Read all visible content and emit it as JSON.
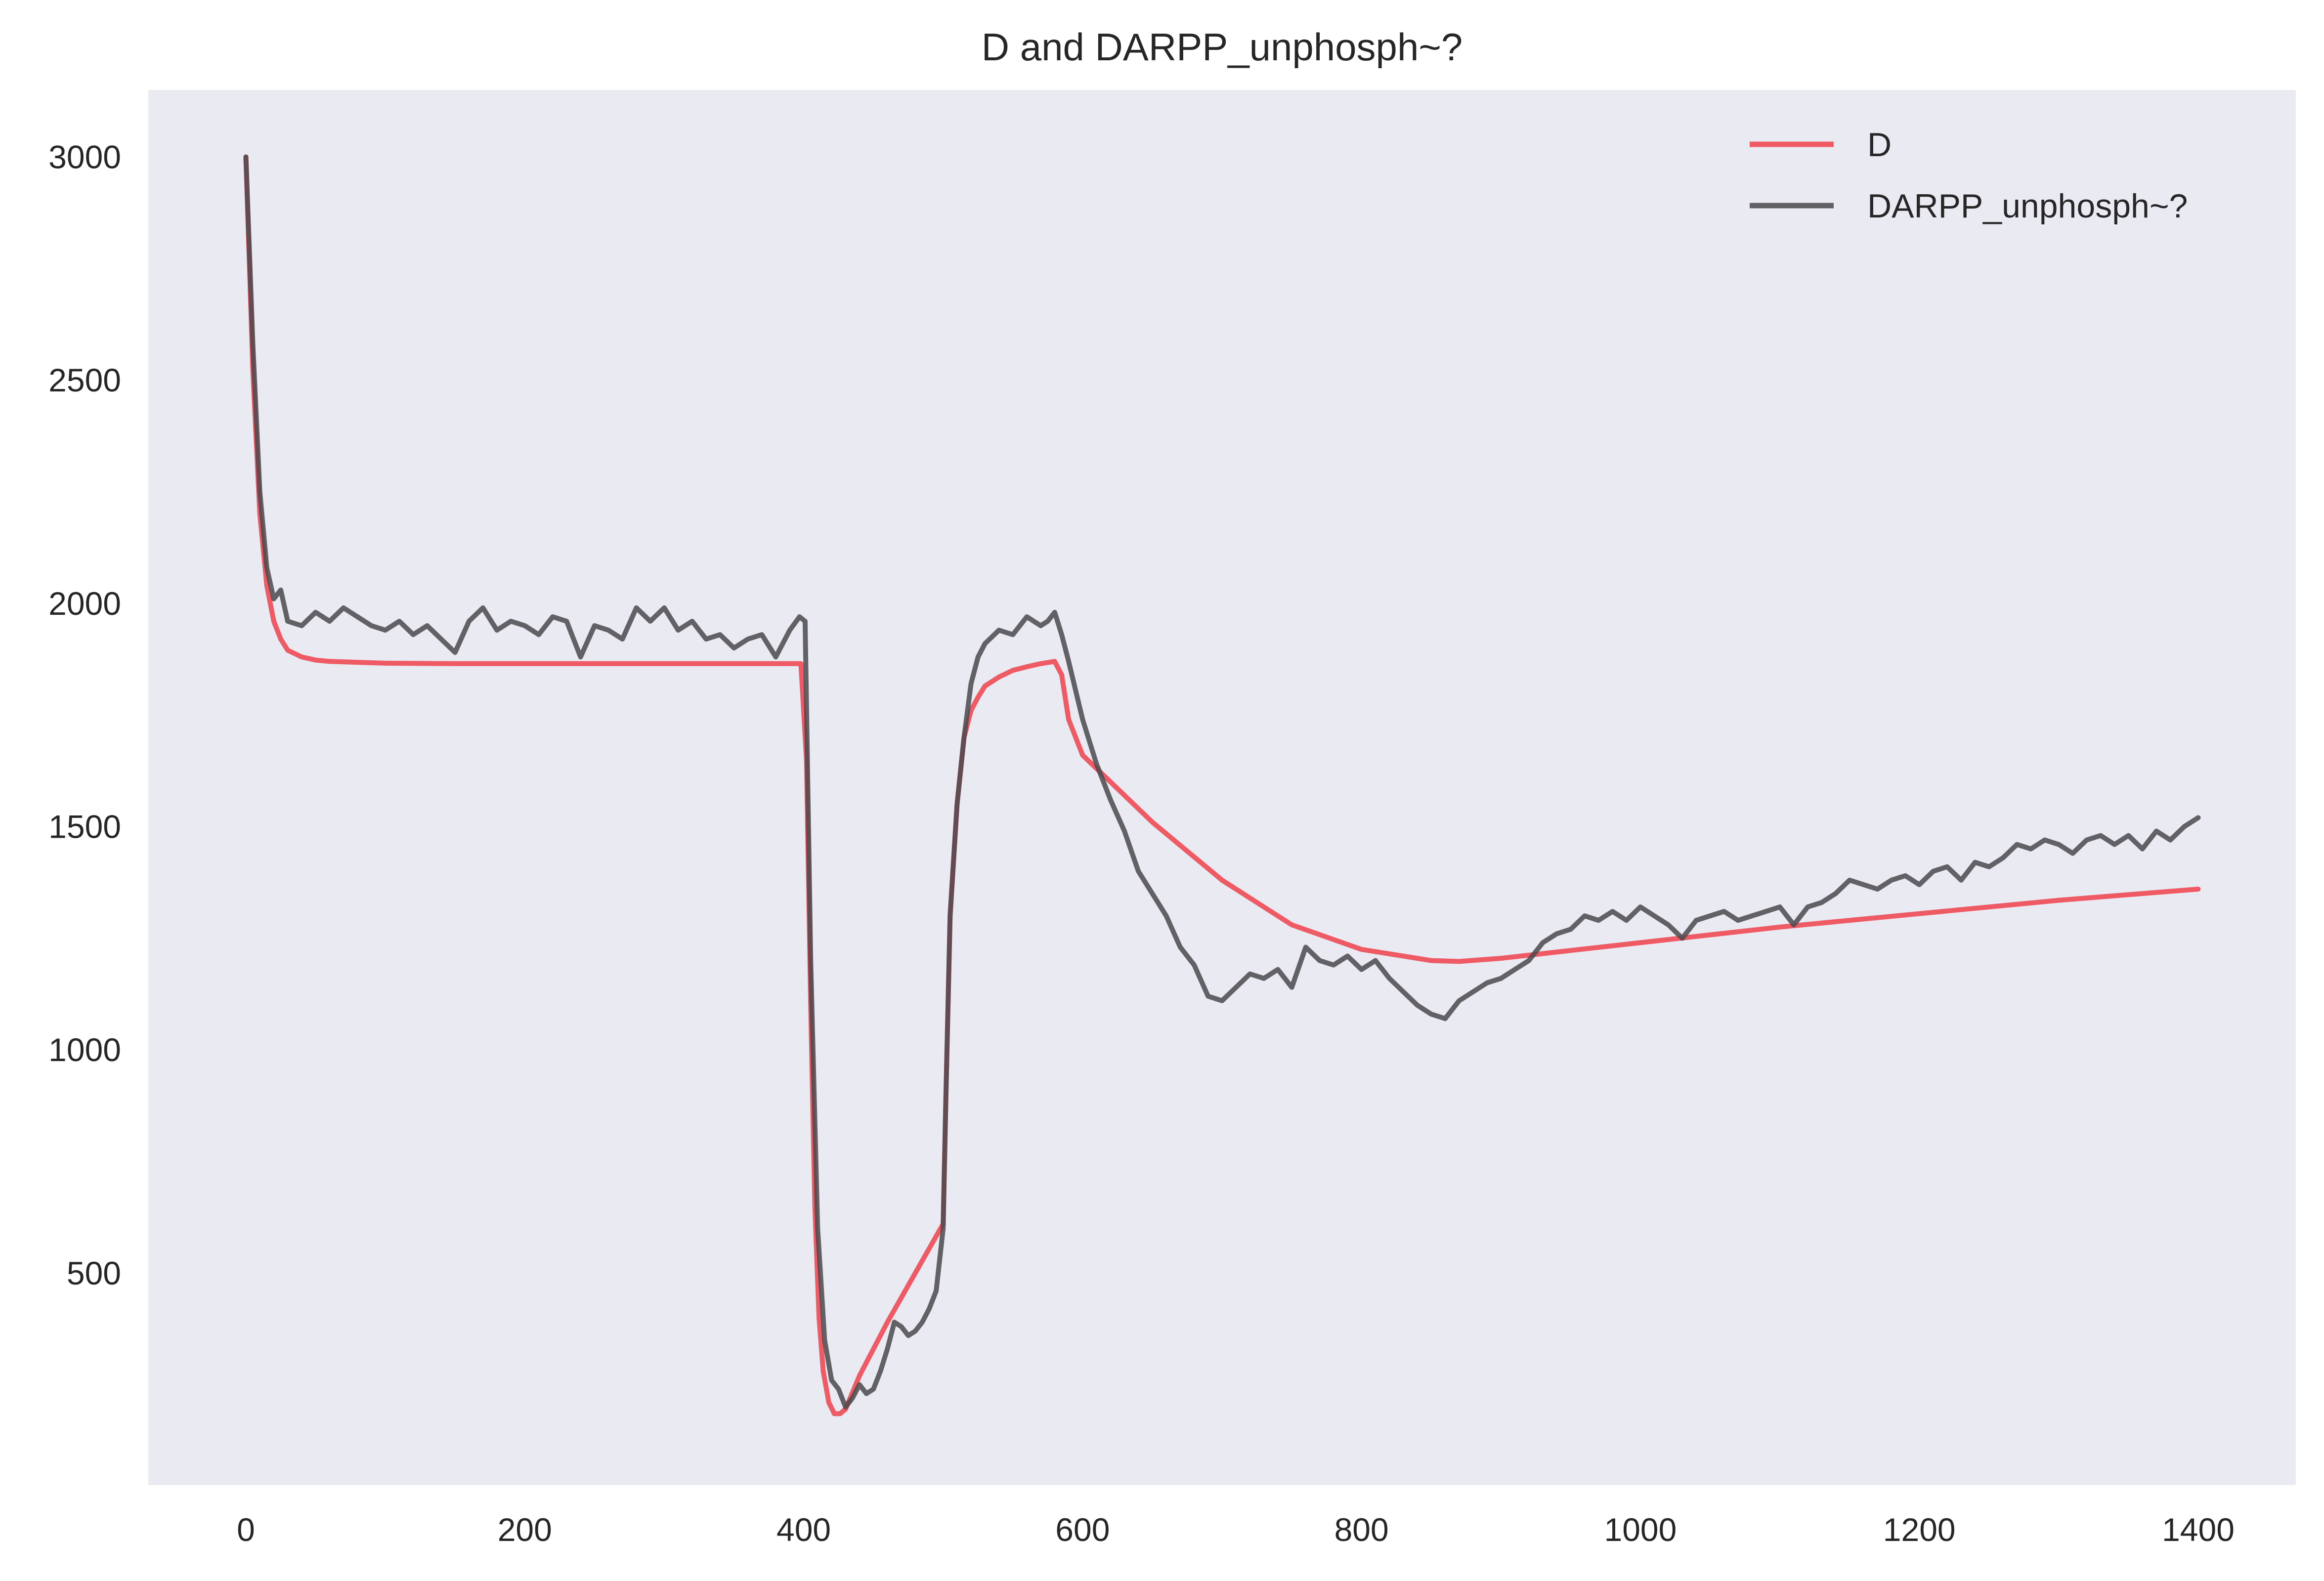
{
  "chart_data": {
    "type": "line",
    "title": "D and DARPP_unphosph~?",
    "xlabel": "",
    "ylabel": "",
    "xlim": [
      -70,
      1470
    ],
    "ylim": [
      25,
      3150
    ],
    "xticks": [
      0,
      200,
      400,
      600,
      800,
      1000,
      1200,
      1400
    ],
    "yticks": [
      500,
      1000,
      1500,
      2000,
      2500,
      3000
    ],
    "grid": false,
    "legend_position": "top-right",
    "background": "#eaeaf2",
    "series": [
      {
        "name": "D",
        "color": "#f0424b",
        "x": [
          0,
          5,
          10,
          15,
          20,
          25,
          30,
          40,
          50,
          60,
          80,
          100,
          150,
          200,
          300,
          398,
          402,
          405,
          408,
          411,
          414,
          418,
          422,
          426,
          430,
          440,
          460,
          480,
          500,
          502,
          505,
          510,
          515,
          520,
          525,
          530,
          540,
          550,
          560,
          570,
          580,
          585,
          590,
          600,
          650,
          700,
          750,
          800,
          850,
          870,
          900,
          1000,
          1100,
          1200,
          1300,
          1400
        ],
        "y": [
          3000,
          2520,
          2200,
          2040,
          1960,
          1920,
          1895,
          1880,
          1873,
          1870,
          1868,
          1866,
          1865,
          1865,
          1865,
          1865,
          1650,
          1100,
          650,
          400,
          280,
          210,
          185,
          185,
          195,
          270,
          390,
          500,
          610,
          900,
          1300,
          1550,
          1700,
          1760,
          1790,
          1815,
          1835,
          1850,
          1858,
          1865,
          1870,
          1840,
          1740,
          1660,
          1510,
          1380,
          1280,
          1225,
          1200,
          1198,
          1205,
          1240,
          1275,
          1305,
          1335,
          1360
        ]
      },
      {
        "name": "DARPP_unphosph~?",
        "color": "#4a4a4d",
        "x": [
          0,
          5,
          10,
          15,
          20,
          25,
          30,
          40,
          50,
          60,
          70,
          80,
          90,
          100,
          110,
          120,
          130,
          140,
          150,
          160,
          170,
          180,
          190,
          200,
          210,
          220,
          230,
          240,
          250,
          260,
          270,
          280,
          290,
          300,
          310,
          320,
          330,
          340,
          350,
          360,
          370,
          380,
          390,
          397,
          401,
          405,
          410,
          415,
          420,
          425,
          430,
          435,
          440,
          445,
          450,
          455,
          460,
          465,
          470,
          475,
          480,
          485,
          490,
          495,
          500,
          502,
          505,
          510,
          515,
          520,
          525,
          530,
          540,
          550,
          560,
          570,
          575,
          580,
          585,
          590,
          600,
          610,
          620,
          630,
          640,
          650,
          660,
          670,
          680,
          690,
          700,
          710,
          720,
          730,
          740,
          750,
          760,
          770,
          780,
          790,
          800,
          810,
          820,
          830,
          840,
          850,
          860,
          870,
          880,
          890,
          900,
          910,
          920,
          930,
          940,
          950,
          960,
          970,
          980,
          990,
          1000,
          1010,
          1020,
          1030,
          1040,
          1050,
          1060,
          1070,
          1080,
          1090,
          1100,
          1110,
          1120,
          1130,
          1140,
          1150,
          1160,
          1170,
          1180,
          1190,
          1200,
          1210,
          1220,
          1230,
          1240,
          1250,
          1260,
          1270,
          1280,
          1290,
          1300,
          1310,
          1320,
          1330,
          1340,
          1350,
          1360,
          1370,
          1380,
          1390,
          1400
        ],
        "y": [
          3000,
          2580,
          2250,
          2080,
          2010,
          2030,
          1960,
          1950,
          1980,
          1960,
          1990,
          1970,
          1950,
          1940,
          1960,
          1930,
          1950,
          1920,
          1890,
          1960,
          1990,
          1940,
          1960,
          1950,
          1930,
          1970,
          1960,
          1880,
          1950,
          1940,
          1920,
          1990,
          1960,
          1990,
          1940,
          1960,
          1920,
          1930,
          1900,
          1920,
          1930,
          1880,
          1940,
          1970,
          1960,
          1200,
          600,
          350,
          260,
          240,
          200,
          220,
          250,
          230,
          240,
          280,
          330,
          390,
          380,
          360,
          370,
          390,
          420,
          460,
          600,
          900,
          1300,
          1550,
          1700,
          1820,
          1880,
          1910,
          1940,
          1930,
          1970,
          1950,
          1960,
          1980,
          1930,
          1870,
          1740,
          1640,
          1560,
          1490,
          1400,
          1350,
          1300,
          1230,
          1190,
          1120,
          1110,
          1140,
          1170,
          1160,
          1180,
          1140,
          1230,
          1200,
          1190,
          1210,
          1180,
          1200,
          1160,
          1130,
          1100,
          1080,
          1070,
          1110,
          1130,
          1150,
          1160,
          1180,
          1200,
          1240,
          1260,
          1270,
          1300,
          1290,
          1310,
          1290,
          1320,
          1300,
          1280,
          1250,
          1290,
          1300,
          1310,
          1290,
          1300,
          1310,
          1320,
          1280,
          1320,
          1330,
          1350,
          1380,
          1370,
          1360,
          1380,
          1390,
          1370,
          1400,
          1410,
          1380,
          1420,
          1410,
          1430,
          1460,
          1450,
          1470,
          1460,
          1440,
          1470,
          1480,
          1460,
          1480,
          1450,
          1490,
          1470,
          1500,
          1520
        ]
      }
    ]
  }
}
